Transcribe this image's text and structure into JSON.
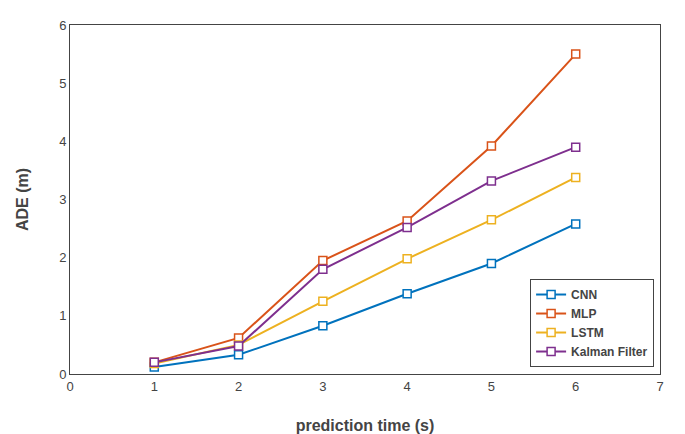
{
  "chart_data": {
    "type": "line",
    "xlabel": "prediction time (s)",
    "ylabel": "ADE (m)",
    "x": [
      1,
      2,
      3,
      4,
      5,
      6
    ],
    "series": [
      {
        "name": "CNN",
        "color": "#0072BD",
        "values": [
          0.12,
          0.33,
          0.83,
          1.38,
          1.9,
          2.58
        ]
      },
      {
        "name": "MLP",
        "color": "#D95319",
        "values": [
          0.2,
          0.62,
          1.95,
          2.63,
          3.92,
          5.5
        ]
      },
      {
        "name": "LSTM",
        "color": "#EDB120",
        "values": [
          0.18,
          0.5,
          1.25,
          1.98,
          2.65,
          3.38
        ]
      },
      {
        "name": "Kalman Filter",
        "color": "#7E2F8E",
        "values": [
          0.2,
          0.48,
          1.8,
          2.52,
          3.32,
          3.9
        ]
      }
    ],
    "marker": "square",
    "xlim": [
      0,
      7
    ],
    "ylim": [
      0,
      6
    ],
    "xticks": [
      0,
      1,
      2,
      3,
      4,
      5,
      6,
      7
    ],
    "yticks": [
      0,
      1,
      2,
      3,
      4,
      5,
      6
    ],
    "grid": false,
    "legend": "lower right"
  }
}
